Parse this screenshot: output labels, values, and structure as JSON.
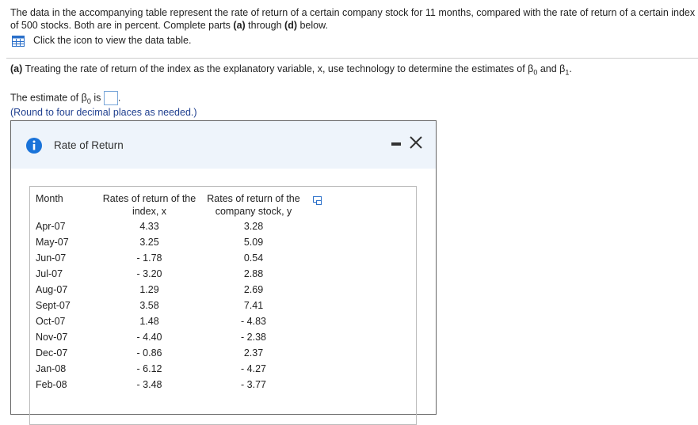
{
  "intro": {
    "parts": [
      "The data in the accompanying table represent the rate of return of a certain company stock for 11 months, compared with the rate of return of a certain index of 500 stocks. Both are in percent. Complete parts ",
      "(a)",
      " through ",
      "(d)",
      " below."
    ]
  },
  "icon_link": "Click the icon to view the data table.",
  "part_a": {
    "label": "(a)",
    "text": " Treating the rate of return of the index as the explanatory variable, x, use technology to determine the estimates of β",
    "sub0": "0",
    "mid": " and β",
    "sub1": "1",
    "end": "."
  },
  "answer": {
    "text": "The estimate of β",
    "sub": "0",
    "is": " is",
    "end": ".",
    "note": "(Round to four decimal places as needed.)"
  },
  "dialog": {
    "title": "Rate of Return"
  },
  "table": {
    "headers": [
      "Month",
      "Rates of return of the index, x",
      "Rates of return of the company stock, y"
    ],
    "rows": [
      [
        "Apr-07",
        "4.33",
        "3.28"
      ],
      [
        "May-07",
        "3.25",
        "5.09"
      ],
      [
        "Jun-07",
        "- 1.78",
        "0.54"
      ],
      [
        "Jul-07",
        "- 3.20",
        "2.88"
      ],
      [
        "Aug-07",
        "1.29",
        "2.69"
      ],
      [
        "Sept-07",
        "3.58",
        "7.41"
      ],
      [
        "Oct-07",
        "1.48",
        "- 4.83"
      ],
      [
        "Nov-07",
        "- 4.40",
        "- 2.38"
      ],
      [
        "Dec-07",
        "- 0.86",
        "2.37"
      ],
      [
        "Jan-08",
        "- 6.12",
        "- 4.27"
      ],
      [
        "Feb-08",
        "- 3.48",
        "- 3.77"
      ]
    ]
  }
}
